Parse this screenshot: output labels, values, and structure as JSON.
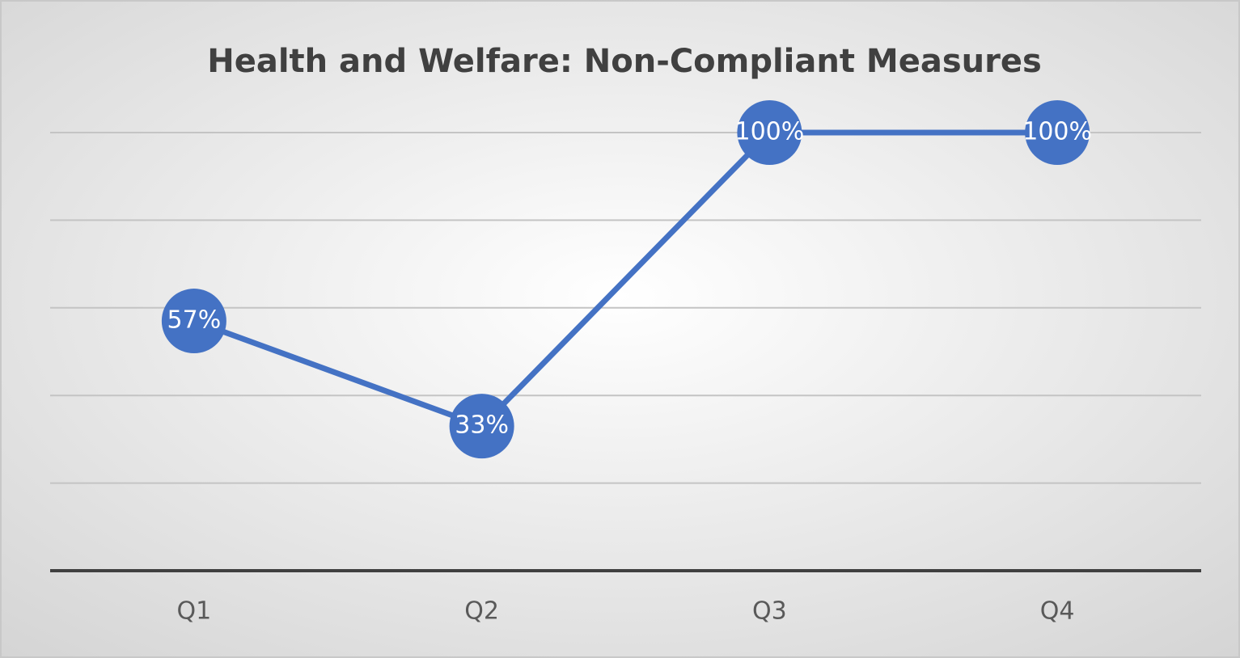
{
  "chart_data": {
    "type": "line",
    "title": "Health and Welfare: Non-Compliant Measures",
    "categories": [
      "Q1",
      "Q2",
      "Q3",
      "Q4"
    ],
    "series": [
      {
        "name": "Non-Compliant Measures",
        "color": "#4472c4",
        "values": [
          57,
          33,
          100,
          100
        ],
        "value_labels": [
          "57%",
          "33%",
          "100%",
          "100%"
        ]
      }
    ],
    "ylim": [
      0,
      100
    ],
    "yticks": [
      0,
      20,
      40,
      60,
      80,
      100
    ],
    "grid": true
  }
}
